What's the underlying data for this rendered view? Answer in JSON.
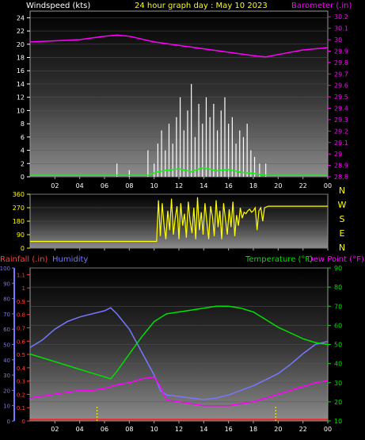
{
  "header": {
    "left_label": "Windspeed (kts)",
    "title": "24 hour graph day : May 10 2023",
    "right_label": "Barometer (.in)"
  },
  "colors": {
    "windspeed_label": "#ffffff",
    "title": "#ffff00",
    "barometer": "#ff00ff",
    "wind_gust": "#ffffff",
    "wind_avg": "#00ff00",
    "direction": "#ffff00",
    "rain_axis": "#ff4040",
    "humidity": "#7777ff",
    "temperature": "#00e000",
    "dew_point": "#ff00ff",
    "rain_line": "#ff2020"
  },
  "bottom_header": {
    "rainfall_label": "Rainfall (.in)",
    "humidity_label": "Humidity",
    "temperature_label": "Temperature (°F)",
    "dewpoint_label": "Dew Point (°F)"
  },
  "compass_labels": [
    "N",
    "W",
    "S",
    "E",
    "N"
  ],
  "x_ticks": [
    "02",
    "04",
    "06",
    "08",
    "10",
    "12",
    "14",
    "16",
    "18",
    "20",
    "22",
    "00"
  ],
  "chart_data": [
    {
      "type": "line",
      "panel": "wind_barometer",
      "left_axis": {
        "label": "Windspeed (kts)",
        "ticks": [
          0,
          2,
          4,
          6,
          8,
          10,
          12,
          14,
          16,
          18,
          20,
          22,
          24
        ],
        "range": [
          0,
          25
        ]
      },
      "right_axis": {
        "label": "Barometer (.in)",
        "ticks": [
          "28.8",
          "28.9",
          "29",
          "29.1",
          "29.2",
          "29.3",
          "29.4",
          "29.5",
          "29.6",
          "29.7",
          "29.8",
          "29.9",
          "30",
          "30.1",
          "30.2"
        ],
        "range": [
          28.8,
          30.25
        ]
      },
      "x_hours": [
        0,
        2,
        4,
        6,
        7,
        8,
        10,
        12,
        14,
        16,
        18,
        19,
        20,
        22,
        24
      ],
      "barometer": [
        29.98,
        29.99,
        30.0,
        30.03,
        30.04,
        30.03,
        29.98,
        29.95,
        29.92,
        29.89,
        29.86,
        29.85,
        29.87,
        29.91,
        29.93
      ],
      "wind_gust_hours": [
        7.0,
        8.0,
        9.5,
        10.0,
        10.3,
        10.6,
        10.9,
        11.2,
        11.5,
        11.8,
        12.1,
        12.4,
        12.7,
        13.0,
        13.3,
        13.6,
        13.9,
        14.2,
        14.5,
        14.8,
        15.1,
        15.4,
        15.7,
        16.0,
        16.3,
        16.6,
        16.9,
        17.2,
        17.5,
        17.8,
        18.1,
        18.5,
        19.0
      ],
      "wind_gust": [
        2,
        1,
        4,
        2,
        5,
        7,
        4,
        8,
        5,
        9,
        12,
        7,
        10,
        14,
        6,
        11,
        8,
        12,
        9,
        11,
        7,
        10,
        12,
        8,
        9,
        5,
        7,
        6,
        8,
        4,
        3,
        2,
        2
      ],
      "wind_avg_hours": [
        0,
        9.5,
        10,
        11,
        12,
        13,
        14,
        15,
        16,
        17,
        18,
        19,
        24
      ],
      "wind_avg": [
        0.2,
        0.2,
        0.6,
        1.0,
        1.2,
        0.8,
        1.4,
        0.9,
        1.1,
        0.7,
        0.5,
        0.2,
        0.2
      ]
    },
    {
      "type": "line",
      "panel": "wind_direction",
      "left_axis": {
        "ticks": [
          0,
          90,
          180,
          270,
          360
        ],
        "range": [
          0,
          360
        ]
      },
      "x_hours": [
        0,
        10.2,
        10.35,
        10.5,
        10.65,
        10.8,
        10.95,
        11.1,
        11.25,
        11.4,
        11.55,
        11.7,
        11.85,
        12.0,
        12.15,
        12.3,
        12.45,
        12.6,
        12.75,
        12.9,
        13.05,
        13.2,
        13.35,
        13.5,
        13.65,
        13.8,
        13.95,
        14.1,
        14.25,
        14.4,
        14.55,
        14.7,
        14.85,
        15.0,
        15.15,
        15.3,
        15.45,
        15.6,
        15.75,
        15.9,
        16.05,
        16.2,
        16.35,
        16.5,
        16.65,
        16.8,
        16.95,
        17.1,
        17.25,
        17.4,
        17.55,
        17.7,
        17.85,
        18.0,
        18.15,
        18.3,
        18.45,
        18.6,
        18.75,
        18.9,
        19.2,
        24
      ],
      "direction": [
        45,
        45,
        320,
        80,
        300,
        150,
        60,
        250,
        120,
        330,
        90,
        200,
        280,
        60,
        300,
        150,
        230,
        70,
        310,
        180,
        100,
        270,
        60,
        340,
        120,
        240,
        90,
        300,
        170,
        60,
        280,
        210,
        80,
        320,
        140,
        250,
        60,
        300,
        190,
        90,
        260,
        140,
        310,
        80,
        220,
        150,
        270,
        200,
        240,
        230,
        250,
        260,
        240,
        250,
        270,
        120,
        250,
        270,
        180,
        270,
        280,
        280
      ]
    },
    {
      "type": "line",
      "panel": "rain_humidity_temperature",
      "left_axis": {
        "label": "Rainfall (.in)",
        "ticks": [
          "0",
          "0.1",
          "0.2",
          "0.3",
          "0.4",
          "0.5",
          "0.6",
          "0.7",
          "0.8",
          "0.9",
          "1",
          "1.1"
        ],
        "range": [
          0,
          1.15
        ]
      },
      "humidity_axis": {
        "label": "Humidity",
        "ticks": [
          0,
          10,
          20,
          30,
          40,
          50,
          60,
          70,
          80,
          90,
          100
        ],
        "range": [
          0,
          100
        ]
      },
      "right_axis": {
        "label": "Temperature (°F)",
        "ticks": [
          10,
          20,
          30,
          40,
          50,
          60,
          70,
          80,
          90
        ],
        "range": [
          10,
          90
        ]
      },
      "x_hours": [
        0,
        1,
        2,
        3,
        4,
        5,
        6,
        6.5,
        7,
        8,
        9,
        10,
        10.5,
        11,
        12,
        13,
        14,
        15,
        16,
        17,
        18,
        19,
        20,
        21,
        22,
        23,
        24
      ],
      "humidity": [
        48,
        53,
        60,
        65,
        68,
        70,
        72,
        74,
        70,
        60,
        45,
        30,
        20,
        17,
        16,
        15,
        14,
        15,
        17,
        20,
        23,
        27,
        31,
        37,
        44,
        50,
        52
      ],
      "temperature": [
        45,
        43,
        41,
        39,
        37,
        35,
        33,
        32,
        36,
        45,
        54,
        62,
        64,
        66,
        67,
        68,
        69,
        70,
        70,
        69,
        67,
        63,
        59,
        56,
        53,
        51,
        50
      ],
      "dew_point": [
        22,
        23,
        24,
        25,
        26,
        26,
        27,
        28,
        29,
        30,
        32,
        33,
        28,
        21,
        20,
        19,
        18,
        18,
        18,
        19,
        20,
        22,
        24,
        26,
        28,
        30,
        31
      ],
      "rain": [
        0.01,
        0.01,
        0.01,
        0.01,
        0.01,
        0.01,
        0.01,
        0.01,
        0.01,
        0.01,
        0.01,
        0.01,
        0.01,
        0.01,
        0.01,
        0.01,
        0.01,
        0.01,
        0.01,
        0.01,
        0.01,
        0.01,
        0.01,
        0.01,
        0.01,
        0.01,
        0.01
      ],
      "markers_hours": [
        5.4,
        19.8
      ]
    }
  ]
}
